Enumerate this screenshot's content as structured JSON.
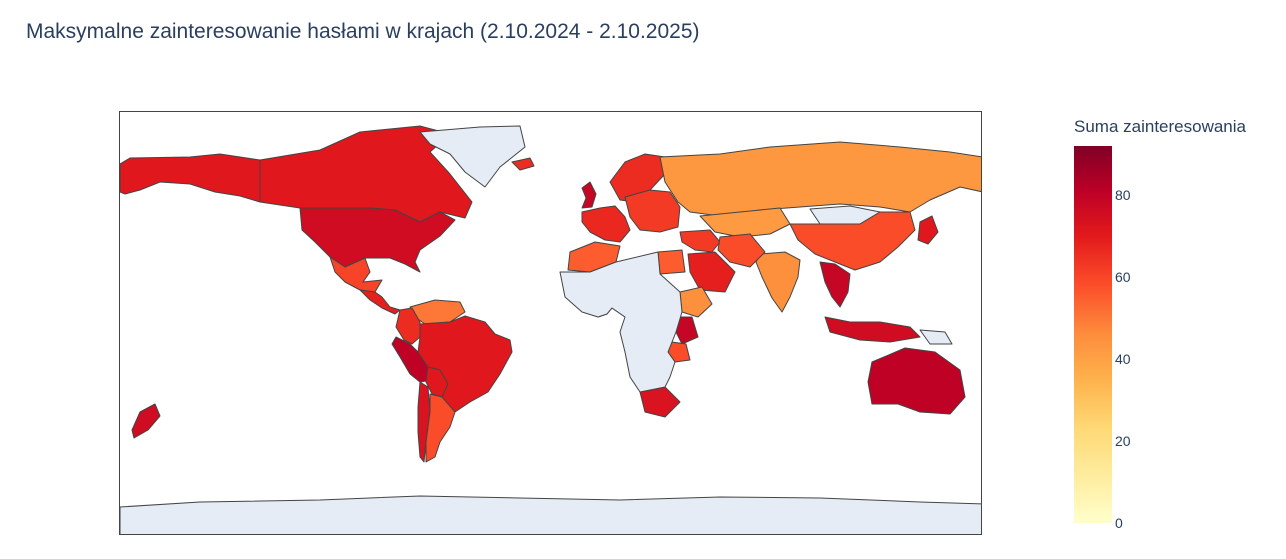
{
  "title": "Maksymalne zainteresowanie hasłami w krajach (2.10.2024 - 2.10.2025)",
  "colorbar": {
    "title": "Suma zainteresowania",
    "min": 0,
    "max": 92,
    "ticks": [
      "0",
      "20",
      "40",
      "60",
      "80"
    ],
    "colors": [
      "#ffffcc",
      "#ffeda0",
      "#fed976",
      "#feb24c",
      "#fd8d3c",
      "#fc4e2a",
      "#e31a1c",
      "#bd0026",
      "#800026"
    ]
  },
  "map": {
    "type": "choropleth",
    "projection": "equirectangular",
    "no_data_color": "#e5ecf6",
    "border_color": "#444444",
    "regions": [
      {
        "name": "Alaska",
        "value": 70
      },
      {
        "name": "Canada",
        "value": 70
      },
      {
        "name": "United States",
        "value": 75
      },
      {
        "name": "Mexico",
        "value": 60
      },
      {
        "name": "Central America",
        "value": 68
      },
      {
        "name": "Venezuela",
        "value": 50
      },
      {
        "name": "Colombia",
        "value": 65
      },
      {
        "name": "Peru",
        "value": 80
      },
      {
        "name": "Brazil",
        "value": 70
      },
      {
        "name": "Bolivia",
        "value": 70
      },
      {
        "name": "Chile",
        "value": 72
      },
      {
        "name": "Argentina",
        "value": 58
      },
      {
        "name": "Greenland",
        "value": null
      },
      {
        "name": "Iceland",
        "value": 65
      },
      {
        "name": "United Kingdom",
        "value": 78
      },
      {
        "name": "Western Europe",
        "value": 66
      },
      {
        "name": "Scandinavia",
        "value": 65
      },
      {
        "name": "Eastern Europe",
        "value": 62
      },
      {
        "name": "Russia",
        "value": 43
      },
      {
        "name": "Kazakhstan",
        "value": 42
      },
      {
        "name": "Mongolia",
        "value": null
      },
      {
        "name": "China",
        "value": 58
      },
      {
        "name": "Japan",
        "value": 70
      },
      {
        "name": "India",
        "value": 45
      },
      {
        "name": "Southeast Asia",
        "value": 78
      },
      {
        "name": "Indonesia",
        "value": 75
      },
      {
        "name": "Papua New Guinea",
        "value": null
      },
      {
        "name": "Australia",
        "value": 80
      },
      {
        "name": "New Zealand",
        "value": 75
      },
      {
        "name": "Middle East",
        "value": 62
      },
      {
        "name": "Saudi Arabia",
        "value": 68
      },
      {
        "name": "Iran",
        "value": 58
      },
      {
        "name": "Morocco",
        "value": 55
      },
      {
        "name": "Egypt",
        "value": 55
      },
      {
        "name": "Nigeria",
        "value": 82
      },
      {
        "name": "Ghana",
        "value": 80
      },
      {
        "name": "Ethiopia",
        "value": 45
      },
      {
        "name": "Kenya",
        "value": 78
      },
      {
        "name": "Tanzania",
        "value": 58
      },
      {
        "name": "South Africa",
        "value": 72
      },
      {
        "name": "Africa (rest)",
        "value": null
      },
      {
        "name": "Antarctica",
        "value": null
      }
    ]
  }
}
